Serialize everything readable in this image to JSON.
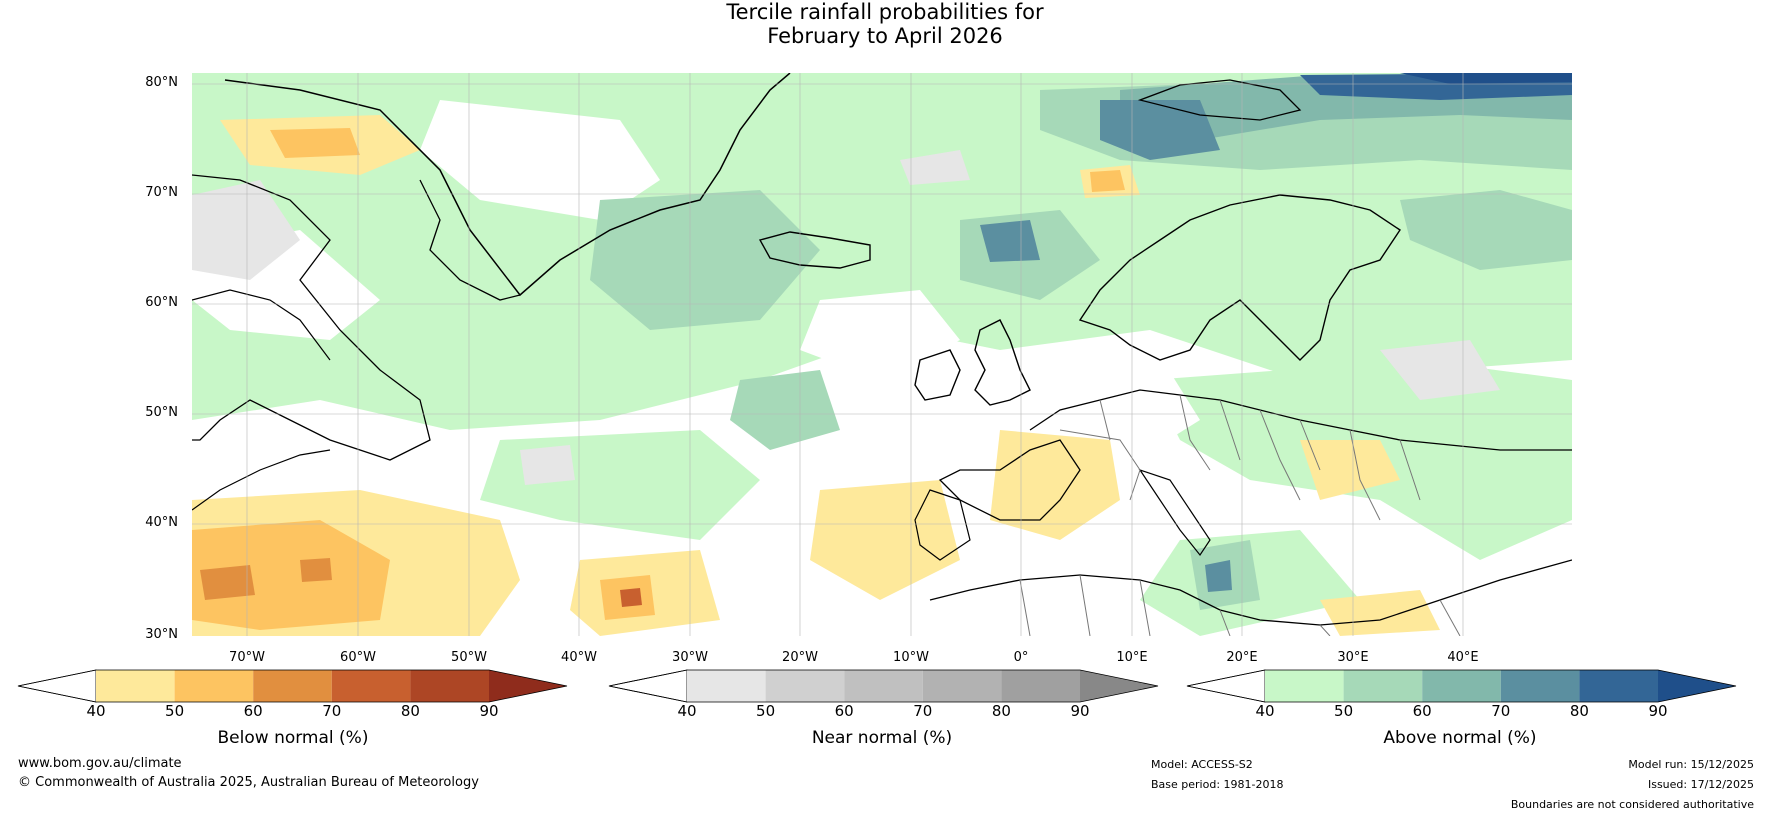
{
  "title_line1": "Tercile rainfall probabilities for",
  "title_line2": "February to April 2026",
  "lat_labels": [
    "80°N",
    "70°N",
    "60°N",
    "50°N",
    "40°N",
    "30°N"
  ],
  "lon_labels": [
    "70°W",
    "60°W",
    "50°W",
    "40°W",
    "30°W",
    "20°W",
    "10°W",
    "0°",
    "10°E",
    "20°E",
    "30°E",
    "40°E"
  ],
  "colorbars": [
    {
      "title": "Below normal (%)",
      "ticks": [
        "40",
        "50",
        "60",
        "70",
        "80",
        "90"
      ],
      "colors": [
        "#ffffff",
        "#fee99b",
        "#fdc461",
        "#e18f3f",
        "#c8602f",
        "#ad4625",
        "#8f2c1c"
      ]
    },
    {
      "title": "Near normal (%)",
      "ticks": [
        "40",
        "50",
        "60",
        "70",
        "80",
        "90"
      ],
      "colors": [
        "#ffffff",
        "#e6e6e6",
        "#d0d0d0",
        "#c0c0c0",
        "#b2b2b2",
        "#a0a0a0",
        "#888888"
      ]
    },
    {
      "title": "Above normal (%)",
      "ticks": [
        "40",
        "50",
        "60",
        "70",
        "80",
        "90"
      ],
      "colors": [
        "#ffffff",
        "#c8f7c8",
        "#a6d9b8",
        "#82b8ab",
        "#5b8fa0",
        "#336696",
        "#1f4f8a"
      ]
    }
  ],
  "footer": {
    "website": "www.bom.gov.au/climate",
    "copyright": "© Commonwealth of Australia 2025, Australian Bureau of Meteorology",
    "model": "Model: ACCESS-S2",
    "base_period": "Base period: 1981-2018",
    "model_run": "Model run: 15/12/2025",
    "issued": "Issued: 17/12/2025",
    "disclaimer": "Boundaries are not considered authoritative"
  }
}
